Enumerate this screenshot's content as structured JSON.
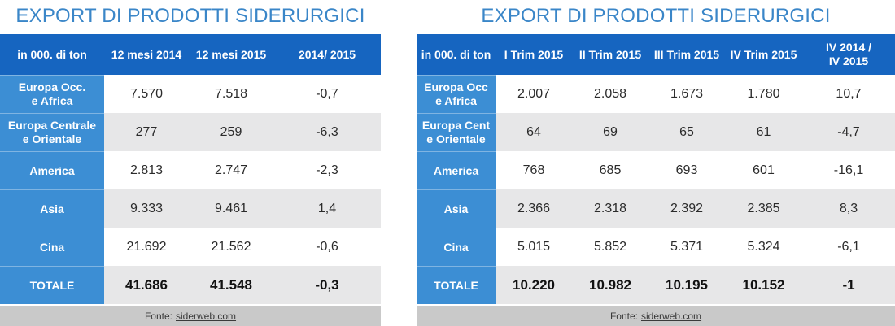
{
  "left": {
    "title": "EXPORT DI PRODOTTI SIDERURGICI",
    "headers": [
      "in 000. di ton",
      "12 mesi 2014",
      "12 mesi 2015",
      "2014/ 2015"
    ],
    "rows": [
      {
        "label": "Europa Occ.\ne Africa",
        "values": [
          "7.570",
          "7.518",
          "-0,7"
        ]
      },
      {
        "label": "Europa Centrale\ne Orientale",
        "values": [
          "277",
          "259",
          "-6,3"
        ]
      },
      {
        "label": "America",
        "values": [
          "2.813",
          "2.747",
          "-2,3"
        ]
      },
      {
        "label": "Asia",
        "values": [
          "9.333",
          "9.461",
          "1,4"
        ]
      },
      {
        "label": "Cina",
        "values": [
          "21.692",
          "21.562",
          "-0,6"
        ]
      }
    ],
    "total": {
      "label": "TOTALE",
      "values": [
        "41.686",
        "41.548",
        "-0,3"
      ]
    },
    "footer": {
      "prefix": "Fonte:",
      "source": "siderweb.com"
    }
  },
  "right": {
    "title": "EXPORT DI PRODOTTI SIDERURGICI",
    "headers": [
      "in 000. di ton",
      "I Trim 2015",
      "II Trim 2015",
      "III Trim 2015",
      "IV Trim 2015",
      "IV 2014 /\nIV 2015"
    ],
    "rows": [
      {
        "label": "Europa Occ\ne Africa",
        "values": [
          "2.007",
          "2.058",
          "1.673",
          "1.780",
          "10,7"
        ]
      },
      {
        "label": "Europa Cent\ne Orientale",
        "values": [
          "64",
          "69",
          "65",
          "61",
          "-4,7"
        ]
      },
      {
        "label": "America",
        "values": [
          "768",
          "685",
          "693",
          "601",
          "-16,1"
        ]
      },
      {
        "label": "Asia",
        "values": [
          "2.366",
          "2.318",
          "2.392",
          "2.385",
          "8,3"
        ]
      },
      {
        "label": "Cina",
        "values": [
          "5.015",
          "5.852",
          "5.371",
          "5.324",
          "-6,1"
        ]
      }
    ],
    "total": {
      "label": "TOTALE",
      "values": [
        "10.220",
        "10.982",
        "10.195",
        "10.152",
        "-1"
      ]
    },
    "footer": {
      "prefix": "Fonte:",
      "source": "siderweb.com"
    }
  }
}
